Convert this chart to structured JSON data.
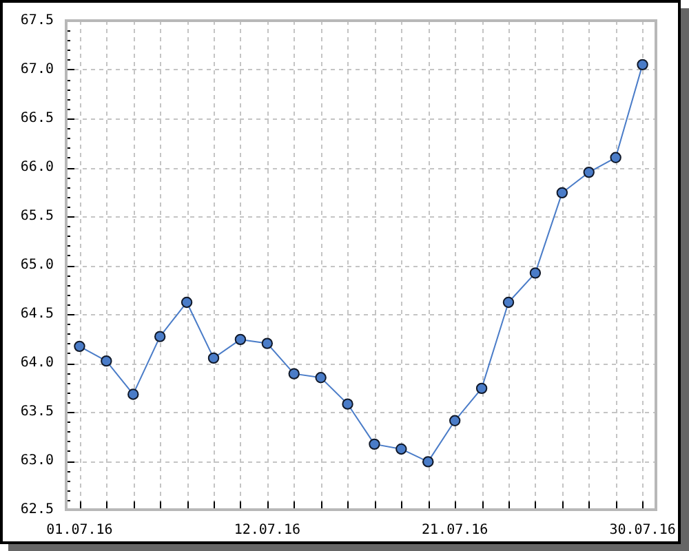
{
  "chart_data": {
    "type": "line",
    "categories": [
      "01.07.16",
      null,
      null,
      null,
      null,
      null,
      null,
      "12.07.16",
      null,
      null,
      null,
      null,
      null,
      null,
      "21.07.16",
      null,
      null,
      null,
      null,
      null,
      null,
      "30.07.16"
    ],
    "series": [
      {
        "color": "#4a7cc8",
        "values": [
          64.17,
          64.02,
          63.68,
          64.27,
          64.62,
          64.05,
          64.24,
          64.2,
          63.89,
          63.85,
          63.58,
          63.17,
          63.12,
          62.99,
          63.41,
          63.74,
          64.62,
          64.92,
          65.74,
          65.95,
          66.1,
          67.05
        ]
      }
    ],
    "ylim": [
      62.5,
      67.5
    ],
    "yticks": [
      {
        "value": 62.5,
        "label": "62.5"
      },
      {
        "value": 62.6,
        "label": null
      },
      {
        "value": 62.7,
        "label": null
      },
      {
        "value": 62.8,
        "label": null
      },
      {
        "value": 62.9,
        "label": null
      },
      {
        "value": 63,
        "label": "63.0"
      },
      {
        "value": 63.1,
        "label": null
      },
      {
        "value": 63.2,
        "label": null
      },
      {
        "value": 63.3,
        "label": null
      },
      {
        "value": 63.4,
        "label": null
      },
      {
        "value": 63.5,
        "label": "63.5"
      },
      {
        "value": 63.6,
        "label": null
      },
      {
        "value": 63.7,
        "label": null
      },
      {
        "value": 63.8,
        "label": null
      },
      {
        "value": 63.9,
        "label": null
      },
      {
        "value": 64,
        "label": "64.0"
      },
      {
        "value": 64.1,
        "label": null
      },
      {
        "value": 64.2,
        "label": null
      },
      {
        "value": 64.3,
        "label": null
      },
      {
        "value": 64.4,
        "label": null
      },
      {
        "value": 64.5,
        "label": "64.5"
      },
      {
        "value": 64.6,
        "label": null
      },
      {
        "value": 64.7,
        "label": null
      },
      {
        "value": 64.8,
        "label": null
      },
      {
        "value": 64.9,
        "label": null
      },
      {
        "value": 65,
        "label": "65.0"
      },
      {
        "value": 65.1,
        "label": null
      },
      {
        "value": 65.2,
        "label": null
      },
      {
        "value": 65.3,
        "label": null
      },
      {
        "value": 65.4,
        "label": null
      },
      {
        "value": 65.5,
        "label": "65.5"
      },
      {
        "value": 65.6,
        "label": null
      },
      {
        "value": 65.7,
        "label": null
      },
      {
        "value": 65.8,
        "label": null
      },
      {
        "value": 65.9,
        "label": null
      },
      {
        "value": 66,
        "label": "66.0"
      },
      {
        "value": 66.1,
        "label": null
      },
      {
        "value": 66.2,
        "label": null
      },
      {
        "value": 66.3,
        "label": null
      },
      {
        "value": 66.4,
        "label": null
      },
      {
        "value": 66.5,
        "label": "66.5"
      },
      {
        "value": 66.6,
        "label": null
      },
      {
        "value": 66.7,
        "label": null
      },
      {
        "value": 66.8,
        "label": null
      },
      {
        "value": 66.9,
        "label": null
      },
      {
        "value": 67,
        "label": "67.0"
      },
      {
        "value": 67.1,
        "label": null
      },
      {
        "value": 67.2,
        "label": null
      },
      {
        "value": 67.3,
        "label": null
      },
      {
        "value": 67.4,
        "label": null
      },
      {
        "value": 67.5,
        "label": "67.5"
      }
    ],
    "grid": true,
    "legend": false,
    "marker": "circle",
    "line_style": "solid"
  }
}
